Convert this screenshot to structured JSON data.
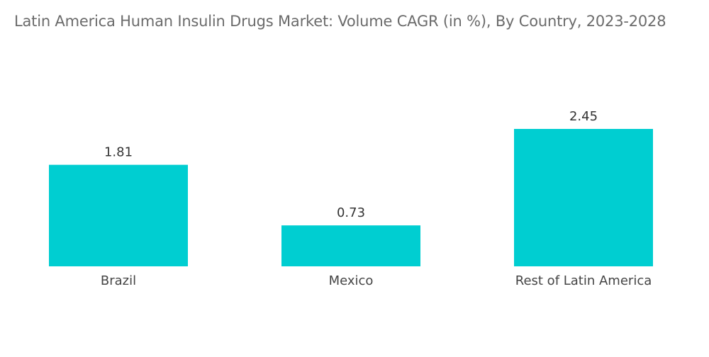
{
  "chart_data": {
    "type": "bar",
    "title": "Latin America Human Insulin Drugs Market: Volume CAGR (in %), By Country, 2023-2028",
    "categories": [
      "Brazil",
      "Mexico",
      "Rest of Latin America"
    ],
    "values": [
      1.81,
      0.73,
      2.45
    ],
    "value_labels": [
      "1.81",
      "0.73",
      "2.45"
    ],
    "xlabel": "",
    "ylabel": "",
    "ylim": [
      0,
      2.45
    ],
    "grid": false,
    "legend": "none",
    "bar_color": "#00CED1"
  }
}
